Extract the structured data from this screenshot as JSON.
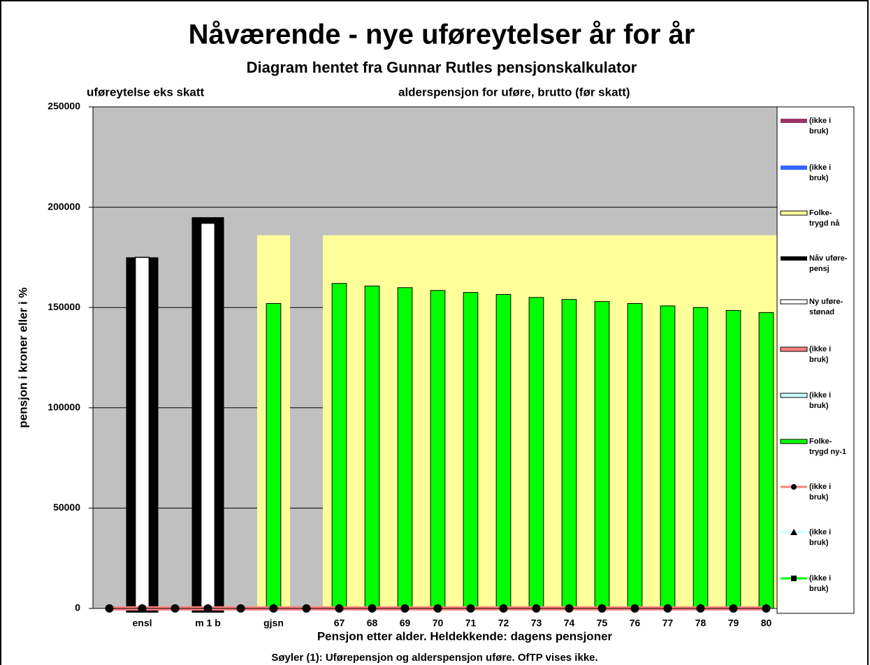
{
  "chart_data": {
    "type": "bar",
    "title": "Nåværende - nye uføreytelser år for år",
    "subtitle": "Diagram hentet fra Gunnar Rutles pensjonskalkulator",
    "annotations": [
      "uføreytelse eks skatt",
      "alderspensjon for uføre, brutto (før skatt)"
    ],
    "ylabel": "pensjon i kroner eller i %",
    "xlabel": "Pensjon etter alder. Heldekkende: dagens pensjoner",
    "footnote": "Søyler (1): Uførepensjon og alderspensjon uføre. OfTP vises ikke.",
    "categories": [
      null,
      "ensl",
      null,
      "m 1 b",
      null,
      "gjsn",
      null,
      "67",
      "68",
      "69",
      "70",
      "71",
      "72",
      "73",
      "74",
      "75",
      "76",
      "77",
      "78",
      "79",
      "80"
    ],
    "ylim": [
      0,
      250000
    ],
    "yticks": [
      0,
      50000,
      100000,
      150000,
      200000,
      250000
    ],
    "grid": true,
    "background": "#c0c0c0",
    "series": [
      {
        "name": "(ikke i bruk)",
        "color": "#993366",
        "values": [
          null,
          null,
          null,
          null,
          null,
          null,
          null,
          null,
          null,
          null,
          null,
          null,
          null,
          null,
          null,
          null,
          null,
          null,
          null,
          null,
          null
        ]
      },
      {
        "name": "(ikke i bruk)",
        "color": "#3366ff",
        "values": [
          null,
          null,
          null,
          null,
          null,
          null,
          null,
          null,
          null,
          null,
          null,
          null,
          null,
          null,
          null,
          null,
          null,
          null,
          null,
          null,
          null
        ]
      },
      {
        "name": "Folke-trygd nå",
        "color": "#ffff99",
        "values": [
          null,
          null,
          null,
          null,
          null,
          186000,
          null,
          186000,
          186000,
          186000,
          186000,
          186000,
          186000,
          186000,
          186000,
          186000,
          186000,
          186000,
          186000,
          186000,
          186000
        ]
      },
      {
        "name": "Nåv uføre-pensj",
        "color": "#000000",
        "values": [
          null,
          175000,
          null,
          195000,
          null,
          null,
          null,
          null,
          null,
          null,
          null,
          null,
          null,
          null,
          null,
          null,
          null,
          null,
          null,
          null,
          null
        ]
      },
      {
        "name": "Ny uføre-stønad",
        "color": "#ffffff",
        "values": [
          null,
          175000,
          null,
          192000,
          null,
          null,
          null,
          null,
          null,
          null,
          null,
          null,
          null,
          null,
          null,
          null,
          null,
          null,
          null,
          null,
          null
        ]
      },
      {
        "name": "(ikke i bruk)",
        "color": "#ff8080",
        "values": [
          null,
          null,
          null,
          null,
          null,
          null,
          null,
          null,
          null,
          null,
          null,
          null,
          null,
          null,
          null,
          null,
          null,
          null,
          null,
          null,
          null
        ]
      },
      {
        "name": "(ikke i bruk)",
        "color": "#ccffff",
        "values": [
          null,
          null,
          null,
          null,
          null,
          null,
          null,
          null,
          null,
          null,
          null,
          null,
          null,
          null,
          null,
          null,
          null,
          null,
          null,
          null,
          null
        ]
      },
      {
        "name": "Folke-trygd ny-1",
        "color": "#00ff00",
        "values": [
          null,
          null,
          null,
          null,
          null,
          152000,
          null,
          162000,
          160700,
          159900,
          158500,
          157500,
          156500,
          155000,
          154000,
          153000,
          152000,
          150800,
          150000,
          148500,
          147500
        ]
      },
      {
        "name": "(ikke i bruk)",
        "color": "#ff8080",
        "marker": "circle",
        "values": [
          0,
          0,
          0,
          0,
          0,
          0,
          0,
          0,
          0,
          0,
          0,
          0,
          0,
          0,
          0,
          0,
          0,
          0,
          0,
          0,
          0
        ]
      },
      {
        "name": "(ikke i bruk)",
        "color": "#ccffff",
        "marker": "triangle",
        "values": [
          null,
          null,
          null,
          null,
          null,
          null,
          null,
          null,
          null,
          null,
          null,
          null,
          null,
          null,
          null,
          null,
          null,
          null,
          null,
          null,
          null
        ]
      },
      {
        "name": "(ikke i bruk)",
        "color": "#00ff00",
        "marker": "square",
        "values": [
          null,
          null,
          null,
          null,
          null,
          null,
          null,
          null,
          null,
          null,
          null,
          null,
          null,
          null,
          null,
          null,
          null,
          null,
          null,
          null,
          null
        ]
      }
    ]
  }
}
